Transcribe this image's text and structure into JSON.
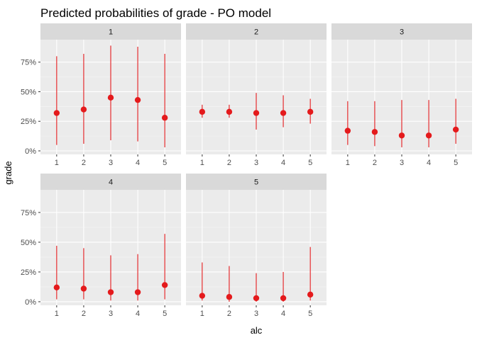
{
  "chart_data": {
    "type": "pointrange",
    "title": "Predicted probabilities of grade - PO model",
    "xlabel": "alc",
    "ylabel": "grade",
    "x_categories": [
      "1",
      "2",
      "3",
      "4",
      "5"
    ],
    "y_ticks": [
      "0%",
      "25%",
      "50%",
      "75%"
    ],
    "y_tick_values": [
      0,
      0.25,
      0.5,
      0.75
    ],
    "ylim": [
      -0.03,
      0.94
    ],
    "color": "#e41a1c",
    "panel_background": "#ebebeb",
    "strip_background": "#d9d9d9",
    "grid": true,
    "facets": [
      {
        "label": "1",
        "points": [
          {
            "x": "1",
            "y": 0.32,
            "lower": 0.05,
            "upper": 0.8
          },
          {
            "x": "2",
            "y": 0.35,
            "lower": 0.06,
            "upper": 0.82
          },
          {
            "x": "3",
            "y": 0.45,
            "lower": 0.09,
            "upper": 0.89
          },
          {
            "x": "4",
            "y": 0.43,
            "lower": 0.08,
            "upper": 0.88
          },
          {
            "x": "5",
            "y": 0.28,
            "lower": 0.03,
            "upper": 0.82
          }
        ]
      },
      {
        "label": "2",
        "points": [
          {
            "x": "1",
            "y": 0.33,
            "lower": 0.28,
            "upper": 0.39
          },
          {
            "x": "2",
            "y": 0.33,
            "lower": 0.28,
            "upper": 0.39
          },
          {
            "x": "3",
            "y": 0.32,
            "lower": 0.18,
            "upper": 0.49
          },
          {
            "x": "4",
            "y": 0.32,
            "lower": 0.2,
            "upper": 0.47
          },
          {
            "x": "5",
            "y": 0.33,
            "lower": 0.23,
            "upper": 0.44
          }
        ]
      },
      {
        "label": "3",
        "points": [
          {
            "x": "1",
            "y": 0.17,
            "lower": 0.05,
            "upper": 0.42
          },
          {
            "x": "2",
            "y": 0.16,
            "lower": 0.04,
            "upper": 0.42
          },
          {
            "x": "3",
            "y": 0.13,
            "lower": 0.03,
            "upper": 0.43
          },
          {
            "x": "4",
            "y": 0.13,
            "lower": 0.03,
            "upper": 0.43
          },
          {
            "x": "5",
            "y": 0.18,
            "lower": 0.06,
            "upper": 0.44
          }
        ]
      },
      {
        "label": "4",
        "points": [
          {
            "x": "1",
            "y": 0.12,
            "lower": 0.02,
            "upper": 0.47
          },
          {
            "x": "2",
            "y": 0.11,
            "lower": 0.02,
            "upper": 0.45
          },
          {
            "x": "3",
            "y": 0.08,
            "lower": 0.01,
            "upper": 0.39
          },
          {
            "x": "4",
            "y": 0.08,
            "lower": 0.01,
            "upper": 0.4
          },
          {
            "x": "5",
            "y": 0.14,
            "lower": 0.02,
            "upper": 0.57
          }
        ]
      },
      {
        "label": "5",
        "points": [
          {
            "x": "1",
            "y": 0.05,
            "lower": 0.01,
            "upper": 0.33
          },
          {
            "x": "2",
            "y": 0.04,
            "lower": 0.0,
            "upper": 0.3
          },
          {
            "x": "3",
            "y": 0.03,
            "lower": 0.0,
            "upper": 0.24
          },
          {
            "x": "4",
            "y": 0.03,
            "lower": 0.0,
            "upper": 0.25
          },
          {
            "x": "5",
            "y": 0.06,
            "lower": 0.01,
            "upper": 0.46
          }
        ]
      }
    ]
  }
}
